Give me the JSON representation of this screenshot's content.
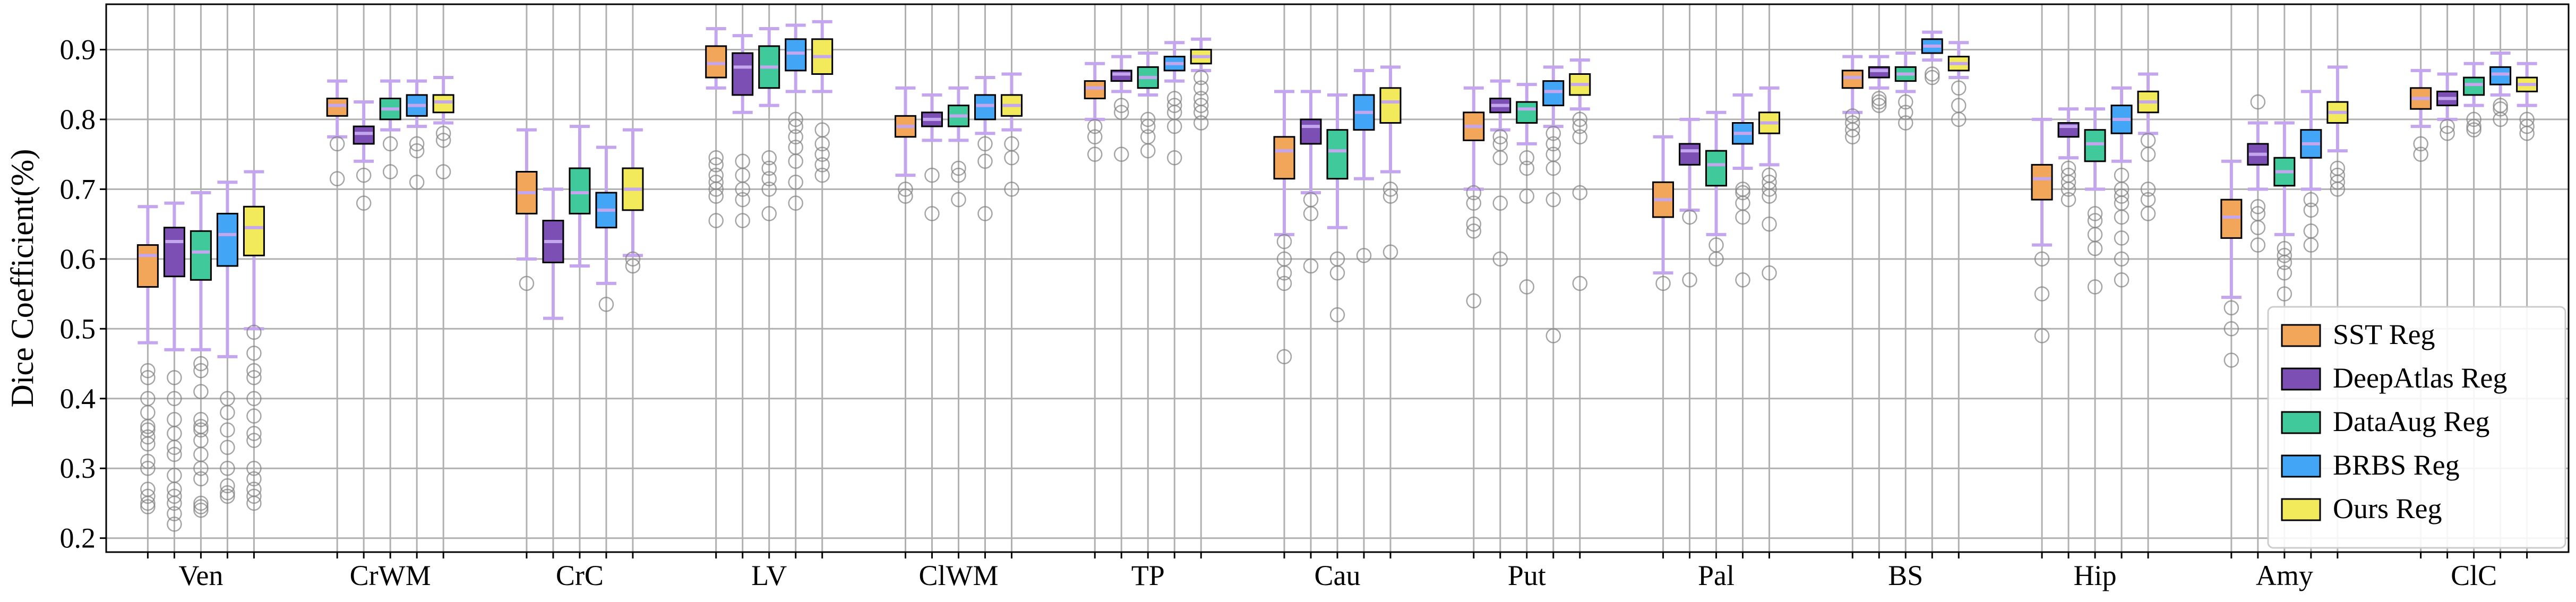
{
  "chart_data": {
    "type": "box",
    "ylabel": "Dice Coefficient(%)",
    "xlabel": "",
    "ylim": [
      0.18,
      0.965
    ],
    "yticks": [
      "0.2",
      "0.3",
      "0.4",
      "0.5",
      "0.6",
      "0.7",
      "0.8",
      "0.9"
    ],
    "grid": true,
    "legend_position": "lower-right",
    "categories": [
      "Ven",
      "CrWM",
      "CrC",
      "LV",
      "ClWM",
      "TP",
      "Cau",
      "Put",
      "Pal",
      "BS",
      "Hip",
      "Amy",
      "ClC"
    ],
    "series": [
      {
        "name": "SST Reg",
        "color": "#f2a65a",
        "boxes": [
          {
            "whislo": 0.48,
            "q1": 0.56,
            "med": 0.605,
            "q3": 0.62,
            "whishi": 0.675,
            "fliers": [
              0.44,
              0.43,
              0.4,
              0.38,
              0.36,
              0.355,
              0.345,
              0.335,
              0.31,
              0.3,
              0.27,
              0.26,
              0.25,
              0.245
            ]
          },
          {
            "whislo": 0.775,
            "q1": 0.805,
            "med": 0.82,
            "q3": 0.83,
            "whishi": 0.855,
            "fliers": [
              0.765,
              0.715
            ]
          },
          {
            "whislo": 0.6,
            "q1": 0.665,
            "med": 0.695,
            "q3": 0.725,
            "whishi": 0.785,
            "fliers": [
              0.565
            ]
          },
          {
            "whislo": 0.845,
            "q1": 0.86,
            "med": 0.88,
            "q3": 0.905,
            "whishi": 0.93,
            "fliers": [
              0.745,
              0.735,
              0.72,
              0.71,
              0.7,
              0.69,
              0.655
            ]
          },
          {
            "whislo": 0.72,
            "q1": 0.775,
            "med": 0.79,
            "q3": 0.805,
            "whishi": 0.845,
            "fliers": [
              0.7,
              0.69
            ]
          },
          {
            "whislo": 0.8,
            "q1": 0.83,
            "med": 0.845,
            "q3": 0.855,
            "whishi": 0.88,
            "fliers": [
              0.79,
              0.775,
              0.75
            ]
          },
          {
            "whislo": 0.635,
            "q1": 0.715,
            "med": 0.755,
            "q3": 0.775,
            "whishi": 0.84,
            "fliers": [
              0.625,
              0.6,
              0.58,
              0.565,
              0.46
            ]
          },
          {
            "whislo": 0.7,
            "q1": 0.77,
            "med": 0.79,
            "q3": 0.81,
            "whishi": 0.845,
            "fliers": [
              0.695,
              0.68,
              0.65,
              0.64,
              0.54
            ]
          },
          {
            "whislo": 0.58,
            "q1": 0.66,
            "med": 0.685,
            "q3": 0.71,
            "whishi": 0.775,
            "fliers": [
              0.565
            ]
          },
          {
            "whislo": 0.81,
            "q1": 0.845,
            "med": 0.86,
            "q3": 0.87,
            "whishi": 0.89,
            "fliers": [
              0.805,
              0.795,
              0.785,
              0.775
            ]
          },
          {
            "whislo": 0.62,
            "q1": 0.685,
            "med": 0.715,
            "q3": 0.735,
            "whishi": 0.8,
            "fliers": [
              0.6,
              0.55,
              0.49
            ]
          },
          {
            "whislo": 0.545,
            "q1": 0.63,
            "med": 0.66,
            "q3": 0.685,
            "whishi": 0.74,
            "fliers": [
              0.53,
              0.5,
              0.455
            ]
          },
          {
            "whislo": 0.79,
            "q1": 0.815,
            "med": 0.83,
            "q3": 0.845,
            "whishi": 0.87,
            "fliers": [
              0.765,
              0.75
            ]
          }
        ]
      },
      {
        "name": "DeepAtlas Reg",
        "color": "#7b4fb3",
        "boxes": [
          {
            "whislo": 0.47,
            "q1": 0.575,
            "med": 0.625,
            "q3": 0.645,
            "whishi": 0.68,
            "fliers": [
              0.43,
              0.4,
              0.37,
              0.35,
              0.33,
              0.32,
              0.29,
              0.27,
              0.26,
              0.25,
              0.235,
              0.22
            ]
          },
          {
            "whislo": 0.74,
            "q1": 0.765,
            "med": 0.78,
            "q3": 0.79,
            "whishi": 0.825,
            "fliers": [
              0.72,
              0.68
            ]
          },
          {
            "whislo": 0.515,
            "q1": 0.595,
            "med": 0.625,
            "q3": 0.655,
            "whishi": 0.7,
            "fliers": []
          },
          {
            "whislo": 0.81,
            "q1": 0.835,
            "med": 0.875,
            "q3": 0.895,
            "whishi": 0.92,
            "fliers": [
              0.74,
              0.72,
              0.7,
              0.685,
              0.655
            ]
          },
          {
            "whislo": 0.77,
            "q1": 0.79,
            "med": 0.8,
            "q3": 0.81,
            "whishi": 0.835,
            "fliers": [
              0.72,
              0.665
            ]
          },
          {
            "whislo": 0.84,
            "q1": 0.855,
            "med": 0.865,
            "q3": 0.87,
            "whishi": 0.89,
            "fliers": [
              0.82,
              0.81,
              0.75
            ]
          },
          {
            "whislo": 0.695,
            "q1": 0.765,
            "med": 0.79,
            "q3": 0.8,
            "whishi": 0.84,
            "fliers": [
              0.685,
              0.665,
              0.59
            ]
          },
          {
            "whislo": 0.785,
            "q1": 0.81,
            "med": 0.82,
            "q3": 0.83,
            "whishi": 0.855,
            "fliers": [
              0.775,
              0.765,
              0.745,
              0.68,
              0.6
            ]
          },
          {
            "whislo": 0.67,
            "q1": 0.735,
            "med": 0.755,
            "q3": 0.765,
            "whishi": 0.8,
            "fliers": [
              0.66,
              0.57
            ]
          },
          {
            "whislo": 0.845,
            "q1": 0.86,
            "med": 0.87,
            "q3": 0.875,
            "whishi": 0.89,
            "fliers": [
              0.83,
              0.825,
              0.82
            ]
          },
          {
            "whislo": 0.745,
            "q1": 0.775,
            "med": 0.79,
            "q3": 0.795,
            "whishi": 0.815,
            "fliers": [
              0.73,
              0.72,
              0.71,
              0.7,
              0.685
            ]
          },
          {
            "whislo": 0.7,
            "q1": 0.735,
            "med": 0.75,
            "q3": 0.765,
            "whishi": 0.795,
            "fliers": [
              0.825,
              0.675,
              0.665,
              0.645,
              0.62
            ]
          },
          {
            "whislo": 0.8,
            "q1": 0.82,
            "med": 0.83,
            "q3": 0.84,
            "whishi": 0.865,
            "fliers": [
              0.79,
              0.78
            ]
          }
        ]
      },
      {
        "name": "DataAug Reg",
        "color": "#40c99a",
        "boxes": [
          {
            "whislo": 0.47,
            "q1": 0.57,
            "med": 0.61,
            "q3": 0.64,
            "whishi": 0.695,
            "fliers": [
              0.45,
              0.44,
              0.41,
              0.37,
              0.36,
              0.355,
              0.34,
              0.32,
              0.3,
              0.285,
              0.25,
              0.245,
              0.24
            ]
          },
          {
            "whislo": 0.785,
            "q1": 0.8,
            "med": 0.815,
            "q3": 0.83,
            "whishi": 0.855,
            "fliers": [
              0.765,
              0.725
            ]
          },
          {
            "whislo": 0.59,
            "q1": 0.665,
            "med": 0.695,
            "q3": 0.73,
            "whishi": 0.79,
            "fliers": []
          },
          {
            "whislo": 0.82,
            "q1": 0.845,
            "med": 0.875,
            "q3": 0.905,
            "whishi": 0.93,
            "fliers": [
              0.745,
              0.73,
              0.715,
              0.7,
              0.665
            ]
          },
          {
            "whislo": 0.77,
            "q1": 0.79,
            "med": 0.805,
            "q3": 0.82,
            "whishi": 0.845,
            "fliers": [
              0.73,
              0.72,
              0.685
            ]
          },
          {
            "whislo": 0.835,
            "q1": 0.845,
            "med": 0.86,
            "q3": 0.875,
            "whishi": 0.895,
            "fliers": [
              0.8,
              0.79,
              0.775,
              0.755
            ]
          },
          {
            "whislo": 0.645,
            "q1": 0.715,
            "med": 0.755,
            "q3": 0.785,
            "whishi": 0.835,
            "fliers": [
              0.6,
              0.58,
              0.52
            ]
          },
          {
            "whislo": 0.765,
            "q1": 0.795,
            "med": 0.815,
            "q3": 0.825,
            "whishi": 0.85,
            "fliers": [
              0.745,
              0.73,
              0.69,
              0.56
            ]
          },
          {
            "whislo": 0.635,
            "q1": 0.705,
            "med": 0.735,
            "q3": 0.755,
            "whishi": 0.81,
            "fliers": [
              0.62,
              0.6
            ]
          },
          {
            "whislo": 0.84,
            "q1": 0.855,
            "med": 0.865,
            "q3": 0.875,
            "whishi": 0.895,
            "fliers": [
              0.825,
              0.81,
              0.795
            ]
          },
          {
            "whislo": 0.7,
            "q1": 0.74,
            "med": 0.765,
            "q3": 0.785,
            "whishi": 0.815,
            "fliers": [
              0.665,
              0.655,
              0.635,
              0.615,
              0.56
            ]
          },
          {
            "whislo": 0.635,
            "q1": 0.705,
            "med": 0.725,
            "q3": 0.745,
            "whishi": 0.795,
            "fliers": [
              0.615,
              0.605,
              0.595,
              0.58,
              0.55
            ]
          },
          {
            "whislo": 0.82,
            "q1": 0.835,
            "med": 0.85,
            "q3": 0.86,
            "whishi": 0.88,
            "fliers": [
              0.8,
              0.79,
              0.785
            ]
          }
        ]
      },
      {
        "name": "BRBS Reg",
        "color": "#42a5f5",
        "boxes": [
          {
            "whislo": 0.46,
            "q1": 0.59,
            "med": 0.635,
            "q3": 0.665,
            "whishi": 0.71,
            "fliers": [
              0.4,
              0.38,
              0.355,
              0.33,
              0.3,
              0.275,
              0.265,
              0.26
            ]
          },
          {
            "whislo": 0.79,
            "q1": 0.805,
            "med": 0.82,
            "q3": 0.835,
            "whishi": 0.855,
            "fliers": [
              0.765,
              0.755,
              0.71
            ]
          },
          {
            "whislo": 0.565,
            "q1": 0.645,
            "med": 0.67,
            "q3": 0.695,
            "whishi": 0.76,
            "fliers": [
              0.535
            ]
          },
          {
            "whislo": 0.84,
            "q1": 0.87,
            "med": 0.895,
            "q3": 0.915,
            "whishi": 0.935,
            "fliers": [
              0.8,
              0.79,
              0.775,
              0.76,
              0.74,
              0.71,
              0.68
            ]
          },
          {
            "whislo": 0.78,
            "q1": 0.8,
            "med": 0.82,
            "q3": 0.835,
            "whishi": 0.86,
            "fliers": [
              0.765,
              0.74,
              0.665
            ]
          },
          {
            "whislo": 0.855,
            "q1": 0.87,
            "med": 0.88,
            "q3": 0.89,
            "whishi": 0.91,
            "fliers": [
              0.83,
              0.82,
              0.81,
              0.79,
              0.745
            ]
          },
          {
            "whislo": 0.715,
            "q1": 0.785,
            "med": 0.81,
            "q3": 0.835,
            "whishi": 0.87,
            "fliers": [
              0.605
            ]
          },
          {
            "whislo": 0.79,
            "q1": 0.82,
            "med": 0.84,
            "q3": 0.855,
            "whishi": 0.875,
            "fliers": [
              0.78,
              0.765,
              0.75,
              0.73,
              0.685,
              0.49
            ]
          },
          {
            "whislo": 0.73,
            "q1": 0.765,
            "med": 0.78,
            "q3": 0.795,
            "whishi": 0.835,
            "fliers": [
              0.7,
              0.695,
              0.68,
              0.66,
              0.57
            ]
          },
          {
            "whislo": 0.885,
            "q1": 0.895,
            "med": 0.905,
            "q3": 0.915,
            "whishi": 0.925,
            "fliers": [
              0.865,
              0.86
            ]
          },
          {
            "whislo": 0.74,
            "q1": 0.78,
            "med": 0.8,
            "q3": 0.82,
            "whishi": 0.845,
            "fliers": [
              0.72,
              0.7,
              0.69,
              0.68,
              0.66,
              0.63,
              0.6,
              0.57
            ]
          },
          {
            "whislo": 0.7,
            "q1": 0.745,
            "med": 0.765,
            "q3": 0.785,
            "whishi": 0.84,
            "fliers": [
              0.685,
              0.67,
              0.64,
              0.62
            ]
          },
          {
            "whislo": 0.835,
            "q1": 0.85,
            "med": 0.865,
            "q3": 0.875,
            "whishi": 0.895,
            "fliers": [
              0.82,
              0.815,
              0.8
            ]
          }
        ]
      },
      {
        "name": "Ours Reg",
        "color": "#f2ea5a",
        "boxes": [
          {
            "whislo": 0.5,
            "q1": 0.605,
            "med": 0.645,
            "q3": 0.675,
            "whishi": 0.725,
            "fliers": [
              0.495,
              0.465,
              0.44,
              0.43,
              0.4,
              0.375,
              0.35,
              0.34,
              0.3,
              0.285,
              0.27,
              0.26,
              0.25
            ]
          },
          {
            "whislo": 0.795,
            "q1": 0.81,
            "med": 0.825,
            "q3": 0.835,
            "whishi": 0.86,
            "fliers": [
              0.78,
              0.77,
              0.725
            ]
          },
          {
            "whislo": 0.605,
            "q1": 0.67,
            "med": 0.7,
            "q3": 0.73,
            "whishi": 0.785,
            "fliers": [
              0.6,
              0.59
            ]
          },
          {
            "whislo": 0.84,
            "q1": 0.865,
            "med": 0.89,
            "q3": 0.915,
            "whishi": 0.94,
            "fliers": [
              0.785,
              0.765,
              0.75,
              0.735,
              0.72
            ]
          },
          {
            "whislo": 0.785,
            "q1": 0.805,
            "med": 0.82,
            "q3": 0.835,
            "whishi": 0.865,
            "fliers": [
              0.765,
              0.745,
              0.7
            ]
          },
          {
            "whislo": 0.87,
            "q1": 0.88,
            "med": 0.89,
            "q3": 0.9,
            "whishi": 0.915,
            "fliers": [
              0.86,
              0.845,
              0.83,
              0.82,
              0.81,
              0.795
            ]
          },
          {
            "whislo": 0.725,
            "q1": 0.795,
            "med": 0.825,
            "q3": 0.845,
            "whishi": 0.875,
            "fliers": [
              0.7,
              0.69,
              0.61
            ]
          },
          {
            "whislo": 0.815,
            "q1": 0.835,
            "med": 0.85,
            "q3": 0.865,
            "whishi": 0.885,
            "fliers": [
              0.8,
              0.79,
              0.775,
              0.695,
              0.565
            ]
          },
          {
            "whislo": 0.735,
            "q1": 0.78,
            "med": 0.795,
            "q3": 0.81,
            "whishi": 0.845,
            "fliers": [
              0.72,
              0.71,
              0.7,
              0.69,
              0.65,
              0.58
            ]
          },
          {
            "whislo": 0.86,
            "q1": 0.87,
            "med": 0.88,
            "q3": 0.89,
            "whishi": 0.91,
            "fliers": [
              0.845,
              0.82,
              0.8
            ]
          },
          {
            "whislo": 0.78,
            "q1": 0.81,
            "med": 0.825,
            "q3": 0.84,
            "whishi": 0.865,
            "fliers": [
              0.77,
              0.75,
              0.7,
              0.685,
              0.665
            ]
          },
          {
            "whislo": 0.755,
            "q1": 0.795,
            "med": 0.81,
            "q3": 0.825,
            "whishi": 0.875,
            "fliers": [
              0.73,
              0.72,
              0.71,
              0.7
            ]
          },
          {
            "whislo": 0.82,
            "q1": 0.84,
            "med": 0.85,
            "q3": 0.86,
            "whishi": 0.88,
            "fliers": [
              0.8,
              0.79,
              0.78
            ]
          }
        ]
      }
    ]
  }
}
